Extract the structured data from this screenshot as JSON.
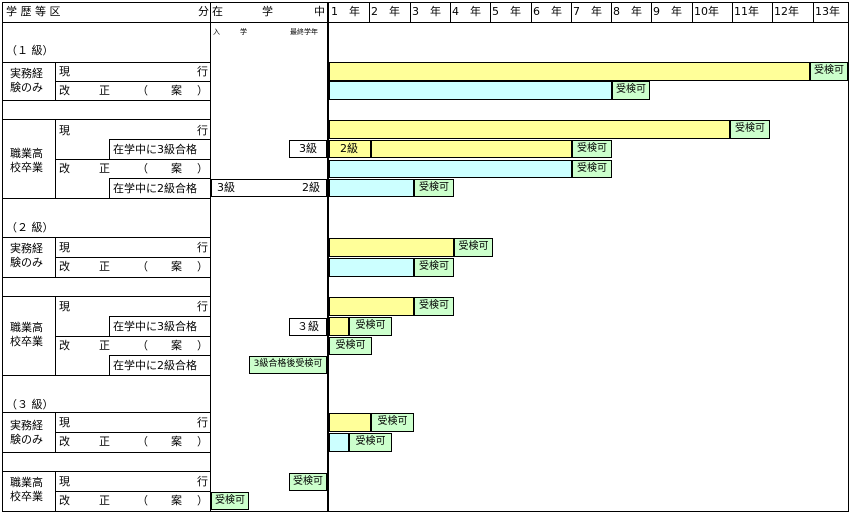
{
  "header": {
    "col1": "学 歴 等 区",
    "col1b": "分",
    "zai": "在",
    "gaku": "学",
    "chu": "中",
    "nyu": "入",
    "gaku2": "学",
    "last_grade": "最終学年",
    "years": [
      "1　年",
      "2　年",
      "3　年",
      "4　年",
      "5　年",
      "6　年",
      "7　年",
      "8　年",
      "9　年",
      "10年",
      "11年",
      "12年",
      "13年"
    ]
  },
  "labels": {
    "grade1": "（１ 級）",
    "grade2": "（２ 級）",
    "grade3": "（３ 級）",
    "jitsumu1": "実務経",
    "jitsumu2": "験のみ",
    "shoku1": "職業高",
    "shoku2": "校卒業",
    "gen": "現",
    "gyo": "行",
    "kai": "改",
    "sei": "正",
    "paren_l": "（",
    "an": "案",
    "paren_r": "）",
    "pass3": "在学中に3級合格",
    "pass2": "在学中に2級合格",
    "kyu3": "3級",
    "kyu2": "2級",
    "kyu3b": "３級",
    "kyu2b": "２級"
  },
  "marks": {
    "ok": "受検可",
    "ok_after3": "3級合格後受検可"
  }
}
